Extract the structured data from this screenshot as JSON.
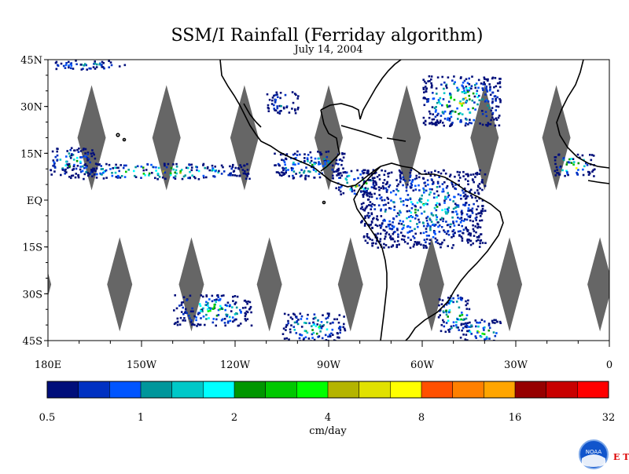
{
  "title": "SSM/I Rainfall (Ferriday algorithm)",
  "subtitle": "July 14, 2004",
  "map": {
    "lon_range": [
      -180,
      0
    ],
    "lat_range": [
      -45,
      45
    ],
    "lat_ticks": [
      {
        "value": 45,
        "label": "45N"
      },
      {
        "value": 30,
        "label": "30N"
      },
      {
        "value": 15,
        "label": "15N"
      },
      {
        "value": 0,
        "label": "EQ"
      },
      {
        "value": -15,
        "label": "15S"
      },
      {
        "value": -30,
        "label": "30S"
      },
      {
        "value": -45,
        "label": "45S"
      }
    ],
    "lon_ticks": [
      {
        "value": -180,
        "label": "180E"
      },
      {
        "value": -150,
        "label": "150W"
      },
      {
        "value": -120,
        "label": "120W"
      },
      {
        "value": -90,
        "label": "90W"
      },
      {
        "value": -60,
        "label": "60W"
      },
      {
        "value": -30,
        "label": "30W"
      },
      {
        "value": 0,
        "label": "0"
      }
    ],
    "colors": {
      "no_data": "#666666",
      "coast": "#000000",
      "background": "#ffffff"
    },
    "rain_bands": [
      {
        "lon": [
          -180,
          -155
        ],
        "lat": [
          42,
          45
        ],
        "max": 2
      },
      {
        "lon": [
          -175,
          -115
        ],
        "lat": [
          7,
          12
        ],
        "max": 10
      },
      {
        "lon": [
          -180,
          -165
        ],
        "lat": [
          8,
          17
        ],
        "max": 4
      },
      {
        "lon": [
          -108,
          -85
        ],
        "lat": [
          7,
          16
        ],
        "max": 4
      },
      {
        "lon": [
          -88,
          -75
        ],
        "lat": [
          2,
          10
        ],
        "max": 20
      },
      {
        "lon": [
          -80,
          -40
        ],
        "lat": [
          -15,
          10
        ],
        "max": 3
      },
      {
        "lon": [
          -60,
          -35
        ],
        "lat": [
          24,
          40
        ],
        "max": 10
      },
      {
        "lon": [
          -55,
          -45
        ],
        "lat": [
          -42,
          -30
        ],
        "max": 20
      },
      {
        "lon": [
          -48,
          -35
        ],
        "lat": [
          -45,
          -38
        ],
        "max": 10
      },
      {
        "lon": [
          -140,
          -115
        ],
        "lat": [
          -40,
          -30
        ],
        "max": 6
      },
      {
        "lon": [
          -105,
          -85
        ],
        "lat": [
          -45,
          -36
        ],
        "max": 6
      },
      {
        "lon": [
          -18,
          -5
        ],
        "lat": [
          8,
          15
        ],
        "max": 20
      },
      {
        "lon": [
          -110,
          -100
        ],
        "lat": [
          28,
          35
        ],
        "max": 2
      }
    ]
  },
  "colorbar": {
    "colors": [
      "#000e7a",
      "#0031c2",
      "#0055ff",
      "#00969b",
      "#00c8c8",
      "#00ffff",
      "#009600",
      "#00c800",
      "#00ff00",
      "#b4b400",
      "#e1e100",
      "#ffff00",
      "#ff5000",
      "#ff8000",
      "#ffa500",
      "#960000",
      "#c80000",
      "#ff0000"
    ],
    "labels": [
      "0.5",
      "1",
      "2",
      "4",
      "8",
      "16",
      "32"
    ],
    "unit": "cm/day"
  },
  "logo": {
    "text": "NOAA",
    "side_text": "E T L",
    "colors": {
      "blue": "#1155cc",
      "red": "#dd0000"
    }
  }
}
